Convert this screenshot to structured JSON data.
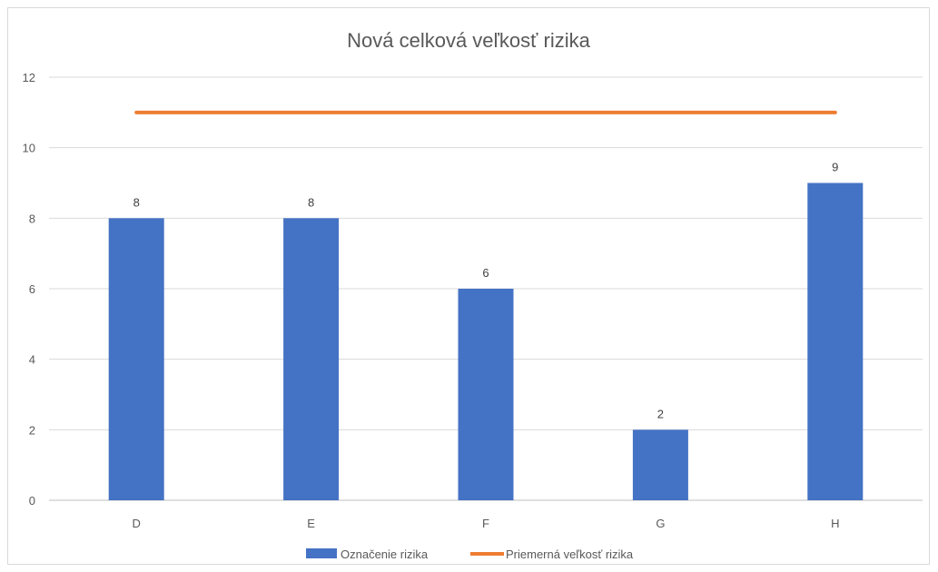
{
  "chart_data": {
    "type": "bar",
    "title": "Nová celková veľkosť rizika",
    "categories": [
      "D",
      "E",
      "F",
      "G",
      "H"
    ],
    "series": [
      {
        "name": "Označenie rizika",
        "type": "bar",
        "values": [
          8,
          8,
          6,
          2,
          9
        ],
        "color": "#4472c4"
      },
      {
        "name": "Priemerná veľkosť rizika",
        "type": "line",
        "values": [
          11,
          11,
          11,
          11,
          11
        ],
        "color": "#ed7d31"
      }
    ],
    "ylim": [
      0,
      12
    ],
    "yticks": [
      0,
      2,
      4,
      6,
      8,
      10,
      12
    ],
    "grid": true,
    "legend": "bottom",
    "data_labels": true
  }
}
